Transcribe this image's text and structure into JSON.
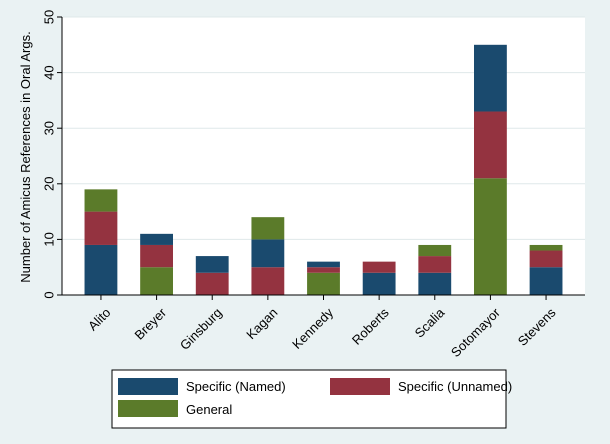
{
  "chart_data": {
    "type": "bar",
    "stacked": true,
    "title": "",
    "xlabel": "",
    "ylabel": "Number of Amicus References in Oral Args.",
    "ylim": [
      0,
      50
    ],
    "yticks": [
      0,
      10,
      20,
      30,
      40,
      50
    ],
    "categories": [
      "Alito",
      "Breyer",
      "Ginsburg",
      "Kagan",
      "Kennedy",
      "Roberts",
      "Scalia",
      "Sotomayor",
      "Stevens"
    ],
    "series": [
      {
        "name": "General",
        "color": "#5b7b2a",
        "values": [
          4,
          5,
          0,
          4,
          4,
          0,
          2,
          21,
          1
        ]
      },
      {
        "name": "Specific (Unnamed)",
        "color": "#943340",
        "values": [
          6,
          4,
          4,
          5,
          1,
          2,
          3,
          12,
          3
        ]
      },
      {
        "name": "Specific (Named)",
        "color": "#1a4a6e",
        "values": [
          9,
          2,
          3,
          5,
          1,
          4,
          4,
          12,
          5
        ]
      }
    ],
    "stack_order": [
      [
        2,
        1,
        0
      ],
      [
        0,
        1,
        2
      ],
      [
        1,
        2,
        0
      ],
      [
        1,
        2,
        0
      ],
      [
        0,
        1,
        2
      ],
      [
        2,
        1,
        0
      ],
      [
        2,
        1,
        0
      ],
      [
        0,
        1,
        2
      ],
      [
        2,
        1,
        0
      ]
    ],
    "legend": {
      "position": "bottom",
      "entries": [
        "Specific (Named)",
        "Specific (Unnamed)",
        "General"
      ]
    },
    "grid": true
  },
  "colors": {
    "background": "#eaf2f3",
    "plot_background": "#ffffff",
    "gridline": "#dfe8ea"
  }
}
